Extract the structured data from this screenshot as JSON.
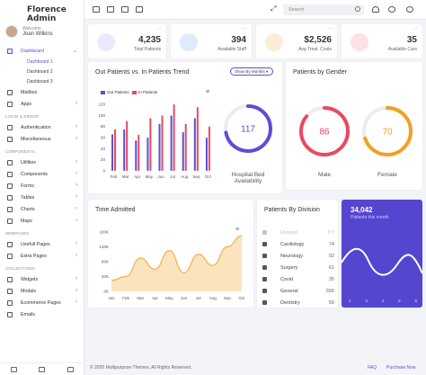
{
  "brand": "Florence Admin",
  "user": {
    "welcome": "Welcome",
    "name": "Joan Wilkins"
  },
  "sidebar": {
    "dashboard": "Dashboard",
    "subs": [
      "Dashboard 1",
      "Dashboard 2",
      "Dashboard 3"
    ],
    "mailbox": "Mailbox",
    "apps": "Apps",
    "section_login": "LOGIN & ERROR",
    "authentication": "Authentication",
    "miscellaneous": "Miscellaneous",
    "section_components": "COMPONENTS",
    "utilities": "Utilities",
    "components": "Components",
    "forms": "Forms",
    "tables": "Tables",
    "charts": "Charts",
    "maps": "Maps",
    "section_webpages": "WEBPAGES",
    "usefull_pages": "Usefull Pages",
    "extra_pages": "Extra Pages",
    "section_collections": "COLLECTIONS",
    "widgets": "Widgets",
    "modals": "Modals",
    "ecommerce": "Ecommerce Pages",
    "emails": "Emails"
  },
  "search": {
    "placeholder": "Search"
  },
  "stats": [
    {
      "value": "4,235",
      "label": "Total Patients",
      "color": "#5a4fd6"
    },
    {
      "value": "394",
      "label": "Available Staff",
      "color": "#3d8fe0"
    },
    {
      "value": "$2,526",
      "label": "Avg Treat. Costs",
      "color": "#f0a050"
    },
    {
      "value": "35",
      "label": "Available Cars",
      "color": "#e84a5f"
    }
  ],
  "trend": {
    "title": "Out Patients vs. In Patients Trend",
    "select": "Show By Months",
    "legend_out": "Out Patients",
    "legend_in": "In Patients"
  },
  "bed": {
    "value": "117",
    "label": "Hospital Bed Availability"
  },
  "gender": {
    "title": "Patients by Gender",
    "male_value": "86",
    "male_label": "Male",
    "female_value": "70",
    "female_label": "Female"
  },
  "admitted": {
    "title": "Time Admitted"
  },
  "division": {
    "title": "Patients By Division",
    "rows": [
      {
        "name": "Division",
        "value": "PT"
      },
      {
        "name": "Cardiology",
        "value": "74"
      },
      {
        "name": "Neurology",
        "value": "92"
      },
      {
        "name": "Surgery",
        "value": "61"
      },
      {
        "name": "Covid",
        "value": "35"
      },
      {
        "name": "General",
        "value": "556"
      },
      {
        "name": "Dentistry",
        "value": "59"
      }
    ]
  },
  "month_card": {
    "value": "34,042",
    "label": "Patients this month",
    "ticks": [
      "2",
      "3",
      "4",
      "5",
      "6"
    ]
  },
  "footer": {
    "copyright": "© 2020 Multipurpose Themes. All Rights Reserved.",
    "faq": "FAQ",
    "purchase": "Purchase Now"
  },
  "chart_data": [
    {
      "type": "bar",
      "categories": [
        "Feb",
        "Mar",
        "Apr",
        "May",
        "Jun",
        "Jul",
        "Aug",
        "Sep",
        "Oct"
      ],
      "series": [
        {
          "name": "Out Patients",
          "values": [
            66,
            75,
            55,
            60,
            85,
            100,
            70,
            95,
            60
          ]
        },
        {
          "name": "In Patients",
          "values": [
            75,
            90,
            65,
            95,
            100,
            120,
            85,
            115,
            80
          ]
        }
      ],
      "ylim": [
        0,
        120
      ],
      "yticks": [
        0,
        20,
        40,
        60,
        80,
        100,
        120
      ],
      "colors": [
        "#5a4fd6",
        "#e84a5f"
      ]
    },
    {
      "type": "area",
      "categories": [
        "Jan",
        "Feb",
        "Mar",
        "Apr",
        "May",
        "Jun",
        "Jul",
        "Aug",
        "Sep",
        "Oct"
      ],
      "values": [
        30000,
        40000,
        90000,
        60000,
        110000,
        50000,
        100000,
        70000,
        120000,
        150000
      ],
      "ylim": [
        0,
        160000
      ],
      "yticks": [
        "0K",
        "40K",
        "80K",
        "120K",
        "160K"
      ],
      "color": "#f2b04a"
    },
    {
      "type": "pie",
      "title": "Hospital Bed Availability",
      "value": 117,
      "fraction": 0.72,
      "color": "#5a4fd6"
    },
    {
      "type": "pie",
      "title": "Patients by Gender",
      "categories": [
        "Male",
        "Female"
      ],
      "values": [
        86,
        70
      ],
      "fractions": [
        0.86,
        0.7
      ],
      "colors": [
        "#e84a5f",
        "#f2a020"
      ]
    }
  ]
}
